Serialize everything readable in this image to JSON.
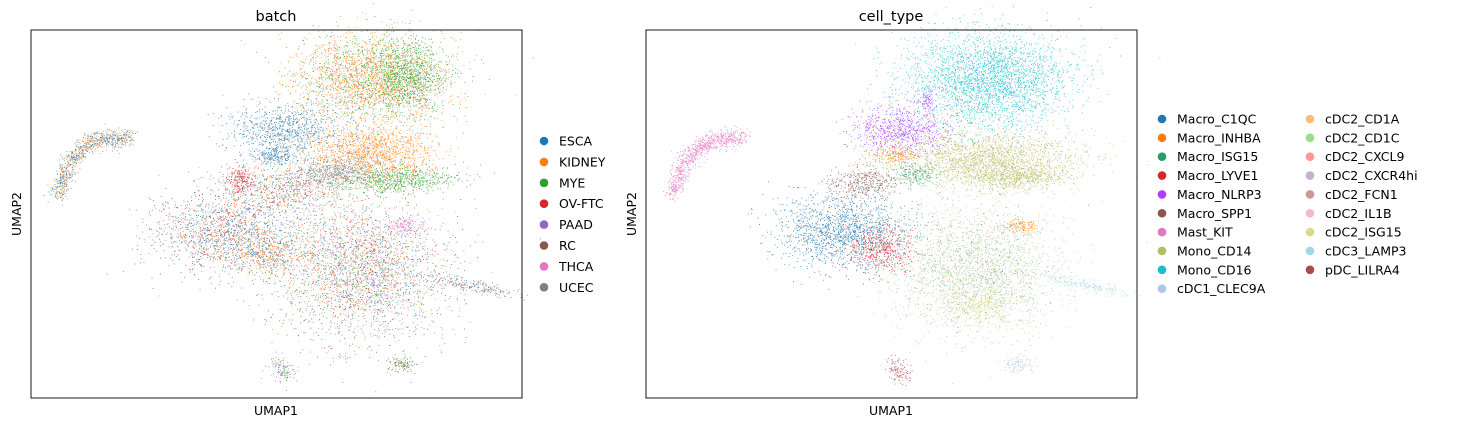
{
  "chart_data": [
    {
      "type": "scatter",
      "title": "batch",
      "xlabel": "UMAP1",
      "ylabel": "UMAP2",
      "grid": false,
      "ticks": false,
      "legend_placement": "right",
      "categories": [
        {
          "name": "ESCA",
          "color": "#1f77b4"
        },
        {
          "name": "KIDNEY",
          "color": "#ff7f0e"
        },
        {
          "name": "MYE",
          "color": "#2ca02c"
        },
        {
          "name": "OV-FTC",
          "color": "#d62728"
        },
        {
          "name": "PAAD",
          "color": "#9467bd"
        },
        {
          "name": "RC",
          "color": "#8c564b"
        },
        {
          "name": "THCA",
          "color": "#e377c2"
        },
        {
          "name": "UCEC",
          "color": "#7f7f7f"
        }
      ]
    },
    {
      "type": "scatter",
      "title": "cell_type",
      "xlabel": "UMAP1",
      "ylabel": "UMAP2",
      "grid": false,
      "ticks": false,
      "legend_placement": "right",
      "categories": [
        {
          "name": "Macro_C1QC",
          "color": "#1f77b4"
        },
        {
          "name": "Macro_INHBA",
          "color": "#ff7f0e"
        },
        {
          "name": "Macro_ISG15",
          "color": "#279e68"
        },
        {
          "name": "Macro_LYVE1",
          "color": "#d62728"
        },
        {
          "name": "Macro_NLRP3",
          "color": "#aa40fc"
        },
        {
          "name": "Macro_SPP1",
          "color": "#8c564b"
        },
        {
          "name": "Mast_KIT",
          "color": "#e377c2"
        },
        {
          "name": "Mono_CD14",
          "color": "#b5bd61"
        },
        {
          "name": "Mono_CD16",
          "color": "#17becf"
        },
        {
          "name": "cDC1_CLEC9A",
          "color": "#aec7e8"
        },
        {
          "name": "cDC2_CD1A",
          "color": "#ffbb78"
        },
        {
          "name": "cDC2_CD1C",
          "color": "#98df8a"
        },
        {
          "name": "cDC2_CXCL9",
          "color": "#ff9896"
        },
        {
          "name": "cDC2_CXCR4hi",
          "color": "#c5b0d5"
        },
        {
          "name": "cDC2_FCN1",
          "color": "#c49c94"
        },
        {
          "name": "cDC2_IL1B",
          "color": "#f7b6d2"
        },
        {
          "name": "cDC2_ISG15",
          "color": "#dbdb8d"
        },
        {
          "name": "cDC3_LAMP3",
          "color": "#9edae5"
        },
        {
          "name": "pDC_LILRA4",
          "color": "#ad494a"
        }
      ]
    }
  ]
}
